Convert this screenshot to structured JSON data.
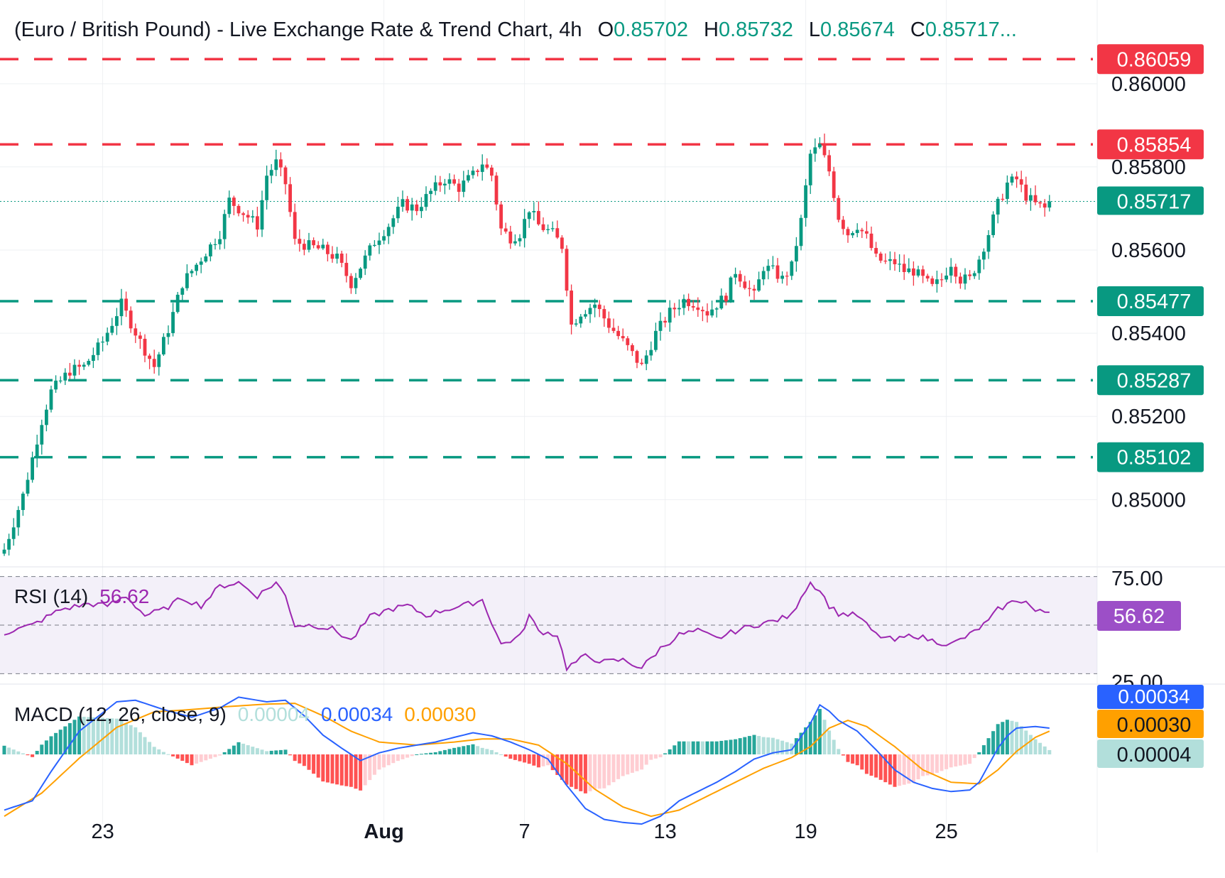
{
  "header": {
    "symbol": "(Euro / British Pound) - Live Exchange Rate & Trend Chart",
    "interval": "4h",
    "o_label": "O",
    "o_value": "0.85702",
    "h_label": "H",
    "h_value": "0.85732",
    "l_label": "L",
    "l_value": "0.85674",
    "c_label": "C",
    "c_value": "0.85717..."
  },
  "colors": {
    "up": "#089981",
    "down": "#f23645",
    "resistance": "#f23645",
    "support": "#089981",
    "rsi": "#9c27b0",
    "macd": "#2962ff",
    "signal": "#ffa000",
    "grid": "#eef0f3"
  },
  "chart_data": {
    "type": "candlestick",
    "interval": "4h",
    "ylim": [
      0.8484,
      0.8615
    ],
    "y_ticks": [
      "0.86000",
      "0.85800",
      "0.85600",
      "0.85400",
      "0.85200",
      "0.85000"
    ],
    "x_ticks": [
      {
        "label": "23",
        "bar": 21
      },
      {
        "label": "Aug",
        "bar": 81
      },
      {
        "label": "7",
        "bar": 111
      },
      {
        "label": "13",
        "bar": 141
      },
      {
        "label": "19",
        "bar": 171
      },
      {
        "label": "25",
        "bar": 201
      }
    ],
    "current_price": {
      "label": "0.85717",
      "value": 0.85717
    },
    "levels": [
      {
        "label": "0.86059",
        "value": 0.86059,
        "type": "resistance"
      },
      {
        "label": "0.85854",
        "value": 0.85854,
        "type": "resistance"
      },
      {
        "label": "0.85477",
        "value": 0.85477,
        "type": "support"
      },
      {
        "label": "0.85287",
        "value": 0.85287,
        "type": "support"
      },
      {
        "label": "0.85102",
        "value": 0.85102,
        "type": "support"
      }
    ],
    "anchors": [
      [
        0,
        0.8488
      ],
      [
        4,
        0.8501
      ],
      [
        8,
        0.8519
      ],
      [
        10,
        0.8526
      ],
      [
        14,
        0.8531
      ],
      [
        17,
        0.8532
      ],
      [
        21,
        0.8538
      ],
      [
        25,
        0.8547
      ],
      [
        29,
        0.8538
      ],
      [
        32,
        0.8532
      ],
      [
        35,
        0.8541
      ],
      [
        38,
        0.8552
      ],
      [
        42,
        0.8558
      ],
      [
        46,
        0.8564
      ],
      [
        48,
        0.8572
      ],
      [
        51,
        0.8569
      ],
      [
        54,
        0.8566
      ],
      [
        56,
        0.8578
      ],
      [
        58,
        0.8581
      ],
      [
        60,
        0.8576
      ],
      [
        62,
        0.8562
      ],
      [
        65,
        0.8561
      ],
      [
        68,
        0.856
      ],
      [
        71,
        0.8558
      ],
      [
        74,
        0.8552
      ],
      [
        77,
        0.8558
      ],
      [
        79,
        0.8562
      ],
      [
        82,
        0.8566
      ],
      [
        85,
        0.8571
      ],
      [
        88,
        0.857
      ],
      [
        91,
        0.8574
      ],
      [
        94,
        0.8577
      ],
      [
        97,
        0.8575
      ],
      [
        100,
        0.8578
      ],
      [
        102,
        0.8581
      ],
      [
        104,
        0.8578
      ],
      [
        106,
        0.8565
      ],
      [
        108,
        0.8563
      ],
      [
        110,
        0.8564
      ],
      [
        112,
        0.857
      ],
      [
        114,
        0.8566
      ],
      [
        117,
        0.8564
      ],
      [
        119,
        0.8561
      ],
      [
        121,
        0.8542
      ],
      [
        123,
        0.8545
      ],
      [
        126,
        0.8547
      ],
      [
        129,
        0.8542
      ],
      [
        132,
        0.8538
      ],
      [
        134,
        0.8535
      ],
      [
        136,
        0.8532
      ],
      [
        139,
        0.854
      ],
      [
        142,
        0.8545
      ],
      [
        145,
        0.8548
      ],
      [
        148,
        0.8547
      ],
      [
        150,
        0.8545
      ],
      [
        152,
        0.8547
      ],
      [
        154,
        0.8549
      ],
      [
        156,
        0.8555
      ],
      [
        158,
        0.8552
      ],
      [
        160,
        0.8549
      ],
      [
        162,
        0.8556
      ],
      [
        164,
        0.8555
      ],
      [
        166,
        0.8553
      ],
      [
        168,
        0.8556
      ],
      [
        170,
        0.8567
      ],
      [
        172,
        0.8583
      ],
      [
        174,
        0.8585
      ],
      [
        176,
        0.8579
      ],
      [
        178,
        0.8568
      ],
      [
        180,
        0.8564
      ],
      [
        182,
        0.8566
      ],
      [
        184,
        0.8563
      ],
      [
        186,
        0.8558
      ],
      [
        188,
        0.8557
      ],
      [
        190,
        0.8557
      ],
      [
        192,
        0.8555
      ],
      [
        194,
        0.8555
      ],
      [
        196,
        0.8553
      ],
      [
        198,
        0.8551
      ],
      [
        200,
        0.8553
      ],
      [
        202,
        0.8557
      ],
      [
        204,
        0.8553
      ],
      [
        206,
        0.8553
      ],
      [
        208,
        0.8558
      ],
      [
        210,
        0.8564
      ],
      [
        212,
        0.8571
      ],
      [
        214,
        0.8576
      ],
      [
        216,
        0.8577
      ],
      [
        218,
        0.8573
      ],
      [
        220,
        0.8571
      ],
      [
        222,
        0.857
      ],
      [
        223,
        0.85717
      ]
    ],
    "rsi": {
      "label": "RSI (14)",
      "value": "56.62",
      "value_num": 56.62,
      "ticks": [
        "75.00",
        "25.00"
      ],
      "ylim": [
        20,
        80
      ],
      "anchors": [
        [
          0,
          46
        ],
        [
          6,
          50
        ],
        [
          12,
          58
        ],
        [
          18,
          61
        ],
        [
          22,
          60
        ],
        [
          26,
          65
        ],
        [
          30,
          55
        ],
        [
          34,
          58
        ],
        [
          38,
          64
        ],
        [
          42,
          60
        ],
        [
          46,
          70
        ],
        [
          50,
          72
        ],
        [
          54,
          65
        ],
        [
          58,
          72
        ],
        [
          60,
          65
        ],
        [
          62,
          50
        ],
        [
          66,
          50
        ],
        [
          70,
          48
        ],
        [
          74,
          42
        ],
        [
          78,
          54
        ],
        [
          82,
          58
        ],
        [
          86,
          60
        ],
        [
          90,
          55
        ],
        [
          94,
          58
        ],
        [
          98,
          60
        ],
        [
          102,
          63
        ],
        [
          106,
          40
        ],
        [
          110,
          44
        ],
        [
          112,
          55
        ],
        [
          114,
          47
        ],
        [
          118,
          45
        ],
        [
          120,
          28
        ],
        [
          124,
          34
        ],
        [
          128,
          31
        ],
        [
          132,
          32
        ],
        [
          136,
          28
        ],
        [
          140,
          38
        ],
        [
          144,
          45
        ],
        [
          148,
          47
        ],
        [
          152,
          43
        ],
        [
          156,
          47
        ],
        [
          160,
          50
        ],
        [
          164,
          52
        ],
        [
          168,
          55
        ],
        [
          170,
          65
        ],
        [
          172,
          72
        ],
        [
          174,
          68
        ],
        [
          176,
          60
        ],
        [
          178,
          56
        ],
        [
          182,
          55
        ],
        [
          186,
          45
        ],
        [
          190,
          42
        ],
        [
          194,
          45
        ],
        [
          198,
          42
        ],
        [
          202,
          40
        ],
        [
          206,
          45
        ],
        [
          210,
          52
        ],
        [
          212,
          58
        ],
        [
          216,
          63
        ],
        [
          218,
          62
        ],
        [
          220,
          57
        ],
        [
          223,
          56.62
        ]
      ]
    },
    "macd": {
      "label": "MACD (12, 26, close, 9)",
      "histogram_value": "0.00004",
      "macd_value": "0.00034",
      "signal_value": "0.00030",
      "ylim": [
        -0.0009,
        0.0009
      ],
      "macd_anchors": [
        [
          0,
          -0.00072
        ],
        [
          6,
          -0.0006
        ],
        [
          10,
          -0.00022
        ],
        [
          16,
          0.0003
        ],
        [
          24,
          0.00068
        ],
        [
          28,
          0.0007
        ],
        [
          34,
          0.00058
        ],
        [
          40,
          0.00048
        ],
        [
          46,
          0.0006
        ],
        [
          50,
          0.00074
        ],
        [
          56,
          0.00068
        ],
        [
          60,
          0.0007
        ],
        [
          64,
          0.0005
        ],
        [
          68,
          0.00025
        ],
        [
          72,
          8e-05
        ],
        [
          76,
          -8e-05
        ],
        [
          80,
          2e-05
        ],
        [
          84,
          8e-05
        ],
        [
          88,
          0.00012
        ],
        [
          92,
          0.00016
        ],
        [
          96,
          0.00022
        ],
        [
          100,
          0.00028
        ],
        [
          104,
          0.00024
        ],
        [
          108,
          0.00016
        ],
        [
          112,
          6e-05
        ],
        [
          116,
          -6e-05
        ],
        [
          120,
          -0.0004
        ],
        [
          124,
          -0.0007
        ],
        [
          128,
          -0.00084
        ],
        [
          132,
          -0.00088
        ],
        [
          136,
          -0.0009
        ],
        [
          140,
          -0.0008
        ],
        [
          144,
          -0.0006
        ],
        [
          148,
          -0.00048
        ],
        [
          152,
          -0.00036
        ],
        [
          156,
          -0.00022
        ],
        [
          160,
          -6e-05
        ],
        [
          164,
          2e-05
        ],
        [
          168,
          6e-05
        ],
        [
          172,
          0.0004
        ],
        [
          174,
          0.00064
        ],
        [
          176,
          0.00056
        ],
        [
          178,
          0.00044
        ],
        [
          182,
          0.0003
        ],
        [
          186,
          6e-05
        ],
        [
          190,
          -0.0002
        ],
        [
          194,
          -0.00036
        ],
        [
          198,
          -0.00044
        ],
        [
          202,
          -0.00048
        ],
        [
          206,
          -0.00046
        ],
        [
          208,
          -0.00036
        ],
        [
          212,
          8e-05
        ],
        [
          214,
          0.00024
        ],
        [
          216,
          0.00034
        ],
        [
          220,
          0.00036
        ],
        [
          223,
          0.00034
        ]
      ],
      "signal_anchors": [
        [
          0,
          -0.0008
        ],
        [
          8,
          -0.0005
        ],
        [
          16,
          -5e-05
        ],
        [
          24,
          0.00035
        ],
        [
          32,
          0.00055
        ],
        [
          40,
          0.00058
        ],
        [
          48,
          0.00062
        ],
        [
          56,
          0.00065
        ],
        [
          62,
          0.00066
        ],
        [
          68,
          0.0005
        ],
        [
          74,
          0.0003
        ],
        [
          80,
          0.00016
        ],
        [
          88,
          0.00012
        ],
        [
          96,
          0.00016
        ],
        [
          102,
          0.0002
        ],
        [
          108,
          0.0002
        ],
        [
          114,
          0.00012
        ],
        [
          120,
          -0.00012
        ],
        [
          126,
          -0.00045
        ],
        [
          132,
          -0.00068
        ],
        [
          138,
          -0.0008
        ],
        [
          144,
          -0.00072
        ],
        [
          150,
          -0.00054
        ],
        [
          156,
          -0.00036
        ],
        [
          162,
          -0.00018
        ],
        [
          168,
          -4e-05
        ],
        [
          172,
          0.0001
        ],
        [
          176,
          0.00034
        ],
        [
          180,
          0.00044
        ],
        [
          184,
          0.00036
        ],
        [
          190,
          0.0001
        ],
        [
          196,
          -0.0002
        ],
        [
          202,
          -0.00036
        ],
        [
          208,
          -0.00038
        ],
        [
          212,
          -0.0002
        ],
        [
          216,
          4e-05
        ],
        [
          220,
          0.00022
        ],
        [
          223,
          0.0003
        ]
      ]
    }
  }
}
